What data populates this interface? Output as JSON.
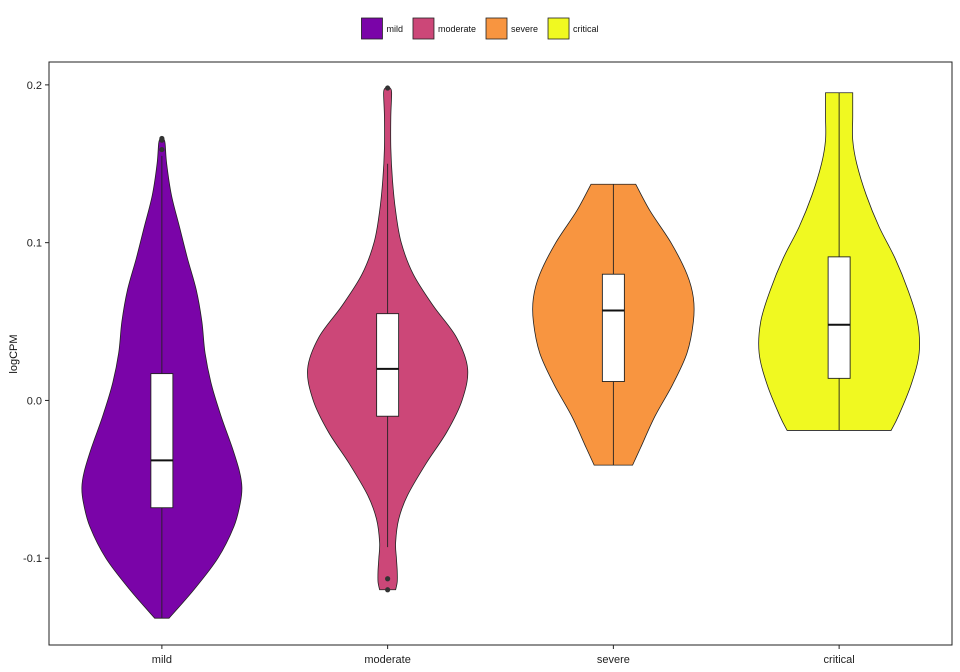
{
  "chart_data": {
    "type": "violin",
    "title": "",
    "xlabel": "",
    "ylabel": "logCPM",
    "ylim": [
      -0.155,
      0.2145
    ],
    "yticks": [
      -0.1,
      0.0,
      0.1,
      0.2
    ],
    "ytick_labels": [
      "-0.1",
      "0.0",
      "0.1",
      "0.2"
    ],
    "categories": [
      "mild",
      "moderate",
      "severe",
      "critical"
    ],
    "legend": {
      "position": "top",
      "items": [
        {
          "label": "mild",
          "color": "#7a04a8"
        },
        {
          "label": "moderate",
          "color": "#cc4778"
        },
        {
          "label": "severe",
          "color": "#f89540"
        },
        {
          "label": "critical",
          "color": "#f0f921"
        }
      ]
    },
    "grid": false,
    "series": [
      {
        "category": "mild",
        "color": "#7a04a8",
        "box": {
          "min": -0.138,
          "q1": -0.068,
          "median": -0.038,
          "q3": 0.017,
          "max": 0.155
        },
        "outliers": [
          0.159,
          0.165,
          0.166
        ],
        "density": [
          [
            -0.138,
            0.09
          ],
          [
            -0.12,
            0.4
          ],
          [
            -0.1,
            0.7
          ],
          [
            -0.08,
            0.9
          ],
          [
            -0.065,
            0.98
          ],
          [
            -0.055,
            1.0
          ],
          [
            -0.045,
            0.97
          ],
          [
            -0.03,
            0.88
          ],
          [
            -0.01,
            0.74
          ],
          [
            0.01,
            0.62
          ],
          [
            0.03,
            0.54
          ],
          [
            0.05,
            0.5
          ],
          [
            0.07,
            0.43
          ],
          [
            0.09,
            0.32
          ],
          [
            0.11,
            0.22
          ],
          [
            0.13,
            0.12
          ],
          [
            0.15,
            0.06
          ],
          [
            0.163,
            0.04
          ],
          [
            0.166,
            0.02
          ]
        ]
      },
      {
        "category": "moderate",
        "color": "#cc4778",
        "box": {
          "min": -0.093,
          "q1": -0.01,
          "median": 0.02,
          "q3": 0.055,
          "max": 0.15
        },
        "outliers": [
          -0.12,
          -0.113,
          0.198
        ],
        "density": [
          [
            -0.12,
            0.1
          ],
          [
            -0.115,
            0.12
          ],
          [
            -0.108,
            0.12
          ],
          [
            -0.1,
            0.11
          ],
          [
            -0.09,
            0.1
          ],
          [
            -0.075,
            0.14
          ],
          [
            -0.06,
            0.25
          ],
          [
            -0.04,
            0.48
          ],
          [
            -0.02,
            0.74
          ],
          [
            0.0,
            0.93
          ],
          [
            0.02,
            1.0
          ],
          [
            0.04,
            0.86
          ],
          [
            0.06,
            0.57
          ],
          [
            0.08,
            0.32
          ],
          [
            0.1,
            0.17
          ],
          [
            0.12,
            0.1
          ],
          [
            0.14,
            0.06
          ],
          [
            0.16,
            0.04
          ],
          [
            0.18,
            0.04
          ],
          [
            0.195,
            0.05
          ],
          [
            0.198,
            0.03
          ]
        ]
      },
      {
        "category": "severe",
        "color": "#f89540",
        "box": {
          "min": -0.041,
          "q1": 0.012,
          "median": 0.057,
          "q3": 0.08,
          "max": 0.137
        },
        "outliers": [],
        "density": [
          [
            -0.041,
            0.24
          ],
          [
            -0.03,
            0.34
          ],
          [
            -0.01,
            0.52
          ],
          [
            0.01,
            0.74
          ],
          [
            0.03,
            0.92
          ],
          [
            0.05,
            1.0
          ],
          [
            0.065,
            1.0
          ],
          [
            0.08,
            0.92
          ],
          [
            0.1,
            0.72
          ],
          [
            0.12,
            0.46
          ],
          [
            0.137,
            0.28
          ]
        ]
      },
      {
        "category": "critical",
        "color": "#f0f921",
        "box": {
          "min": -0.019,
          "q1": 0.014,
          "median": 0.048,
          "q3": 0.091,
          "max": 0.195
        },
        "outliers": [],
        "density": [
          [
            -0.019,
            0.65
          ],
          [
            -0.01,
            0.74
          ],
          [
            0.01,
            0.9
          ],
          [
            0.03,
            1.0
          ],
          [
            0.05,
            0.98
          ],
          [
            0.07,
            0.86
          ],
          [
            0.09,
            0.7
          ],
          [
            0.11,
            0.5
          ],
          [
            0.13,
            0.34
          ],
          [
            0.15,
            0.22
          ],
          [
            0.165,
            0.17
          ],
          [
            0.18,
            0.17
          ],
          [
            0.195,
            0.17
          ]
        ]
      }
    ]
  }
}
